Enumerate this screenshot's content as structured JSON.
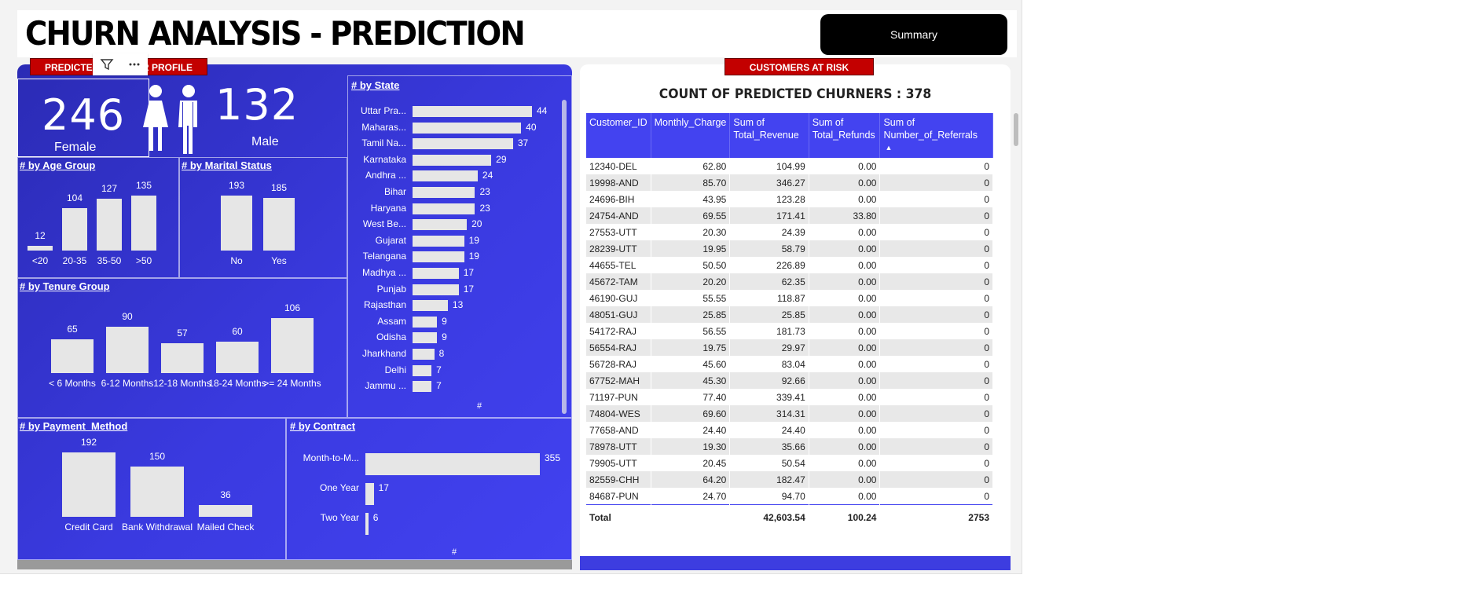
{
  "title": "CHURN ANALYSIS - PREDICTION",
  "summary_button": "Summary",
  "profile_badge": "PREDICTED CHURNER PROFILE",
  "risk_badge": "CUSTOMERS AT RISK",
  "gender": {
    "female_count": "246",
    "female_label": "Female",
    "male_count": "132",
    "male_label": "Male"
  },
  "age_group": {
    "title": "# by Age Group",
    "categories": [
      "<20",
      "20-35",
      "35-50",
      ">50"
    ],
    "values": [
      12,
      104,
      127,
      135
    ]
  },
  "marital_status": {
    "title": "# by Marital Status",
    "categories": [
      "No",
      "Yes"
    ],
    "values": [
      193,
      185
    ]
  },
  "tenure_group": {
    "title": "# by Tenure Group",
    "categories": [
      "< 6 Months",
      "6-12 Months",
      "12-18 Months",
      "18-24 Months",
      ">= 24 Months"
    ],
    "values": [
      65,
      90,
      57,
      60,
      106
    ]
  },
  "state": {
    "title": "# by State",
    "axis_label": "#",
    "categories": [
      "Uttar Pra...",
      "Maharas...",
      "Tamil Na...",
      "Karnataka",
      "Andhra ...",
      "Bihar",
      "Haryana",
      "West Be...",
      "Gujarat",
      "Telangana",
      "Madhya ...",
      "Punjab",
      "Rajasthan",
      "Assam",
      "Odisha",
      "Jharkhand",
      "Delhi",
      "Jammu ..."
    ],
    "values": [
      44,
      40,
      37,
      29,
      24,
      23,
      23,
      20,
      19,
      19,
      17,
      17,
      13,
      9,
      9,
      8,
      7,
      7
    ]
  },
  "payment_method": {
    "title": "# by Payment_Method",
    "categories": [
      "Credit Card",
      "Bank Withdrawal",
      "Mailed Check"
    ],
    "values": [
      192,
      150,
      36
    ]
  },
  "contract": {
    "title": "# by Contract",
    "axis_label": "#",
    "categories": [
      "Month-to-M...",
      "One Year",
      "Two Year"
    ],
    "values": [
      355,
      17,
      6
    ]
  },
  "table": {
    "count_title": "COUNT OF PREDICTED CHURNERS : 378",
    "headers": [
      "Customer_ID",
      "Monthly_Charge",
      "Sum of Total_Revenue",
      "Sum of Total_Refunds",
      "Sum of Number_of_Referrals"
    ],
    "rows": [
      [
        "12340-DEL",
        "62.80",
        "104.99",
        "0.00",
        "0"
      ],
      [
        "19998-AND",
        "85.70",
        "346.27",
        "0.00",
        "0"
      ],
      [
        "24696-BIH",
        "43.95",
        "123.28",
        "0.00",
        "0"
      ],
      [
        "24754-AND",
        "69.55",
        "171.41",
        "33.80",
        "0"
      ],
      [
        "27553-UTT",
        "20.30",
        "24.39",
        "0.00",
        "0"
      ],
      [
        "28239-UTT",
        "19.95",
        "58.79",
        "0.00",
        "0"
      ],
      [
        "44655-TEL",
        "50.50",
        "226.89",
        "0.00",
        "0"
      ],
      [
        "45672-TAM",
        "20.20",
        "62.35",
        "0.00",
        "0"
      ],
      [
        "46190-GUJ",
        "55.55",
        "118.87",
        "0.00",
        "0"
      ],
      [
        "48051-GUJ",
        "25.85",
        "25.85",
        "0.00",
        "0"
      ],
      [
        "54172-RAJ",
        "56.55",
        "181.73",
        "0.00",
        "0"
      ],
      [
        "56554-RAJ",
        "19.75",
        "29.97",
        "0.00",
        "0"
      ],
      [
        "56728-RAJ",
        "45.60",
        "83.04",
        "0.00",
        "0"
      ],
      [
        "67752-MAH",
        "45.30",
        "92.66",
        "0.00",
        "0"
      ],
      [
        "71197-PUN",
        "77.40",
        "339.41",
        "0.00",
        "0"
      ],
      [
        "74804-WES",
        "69.60",
        "314.31",
        "0.00",
        "0"
      ],
      [
        "77658-AND",
        "24.40",
        "24.40",
        "0.00",
        "0"
      ],
      [
        "78978-UTT",
        "19.30",
        "35.66",
        "0.00",
        "0"
      ],
      [
        "79905-UTT",
        "20.45",
        "50.54",
        "0.00",
        "0"
      ],
      [
        "82559-CHH",
        "64.20",
        "182.47",
        "0.00",
        "0"
      ],
      [
        "84687-PUN",
        "24.70",
        "94.70",
        "0.00",
        "0"
      ]
    ],
    "total": [
      "Total",
      "",
      "42,603.54",
      "100.24",
      "2753"
    ]
  },
  "icons": [
    "filter-icon",
    "more-options-icon",
    "female-icon",
    "male-icon",
    "sort-ascending-icon"
  ]
}
